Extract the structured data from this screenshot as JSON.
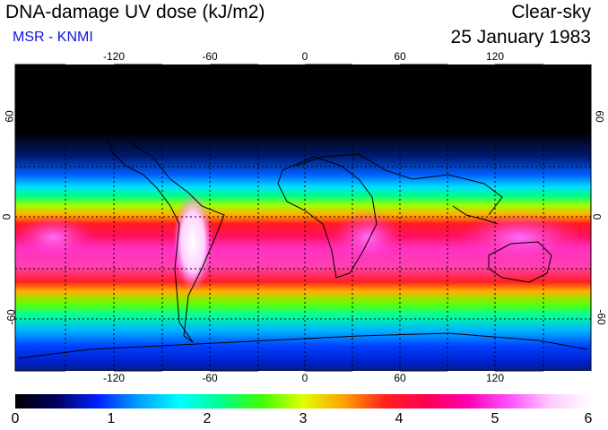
{
  "header": {
    "title": "DNA-damage UV dose (kJ/m2)",
    "source": "MSR - KNMI",
    "sky_condition": "Clear-sky",
    "date": "25 January 1983"
  },
  "map": {
    "longitude_labels": [
      "-120",
      "-60",
      "0",
      "60",
      "120"
    ],
    "longitude_values": [
      -120,
      -60,
      0,
      60,
      120
    ],
    "latitude_labels": [
      "60",
      "0",
      "-60"
    ],
    "latitude_values": [
      60,
      0,
      -60
    ]
  },
  "colorbar": {
    "min": 0,
    "max": 6,
    "tick_labels": [
      "0",
      "1",
      "2",
      "3",
      "4",
      "5",
      "6"
    ],
    "colors": [
      "#000000",
      "#000060",
      "#0020ff",
      "#00a0ff",
      "#00ffff",
      "#00ff90",
      "#40ff00",
      "#e0ff00",
      "#ffa000",
      "#ff2020",
      "#ff0050",
      "#ff00b0",
      "#ff50ff",
      "#ffc8ff",
      "#ffffff"
    ]
  }
}
